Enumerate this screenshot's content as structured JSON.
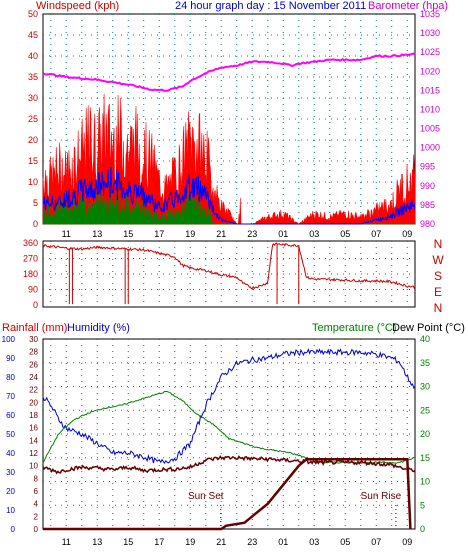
{
  "header": {
    "left_title": "Windspeed (kph)",
    "center_title": "24 hour graph day : 15 November 2011",
    "right_title": "Barometer (hpa)"
  },
  "lower_header": {
    "rain": "Rainfall (mm)",
    "humidity": "Humidity (%)",
    "temp": "Temperature (°C)",
    "dew": "Dew Point (°C)"
  },
  "x_ticks": [
    "11",
    "13",
    "15",
    "17",
    "19",
    "21",
    "23",
    "01",
    "03",
    "05",
    "07",
    "09"
  ],
  "colors": {
    "wind": "#ff0000",
    "gust_avg": "#0000ff",
    "green": "#008000",
    "baro": "#ff00ff",
    "dir": "#cc0000",
    "humidity": "#0000cc",
    "temperature": "#008000",
    "dewpoint": "#660000",
    "rain": "#660000",
    "grid": "#008080",
    "axis_blue": "#0000cc",
    "axis_red": "#cc0000",
    "axis_magenta": "#cc00cc",
    "axis_green": "#008000"
  },
  "chart_data": [
    {
      "type": "line",
      "panel": "wind-baro",
      "x_range_hours": [
        9.5,
        33.5
      ],
      "series_wind": {
        "ylim": [
          0,
          50
        ],
        "y_ticks": [
          "0",
          "5",
          "10",
          "15",
          "20",
          "25",
          "30",
          "35",
          "40",
          "45",
          "50"
        ],
        "gust_profile": [
          [
            9.5,
            14
          ],
          [
            10,
            13
          ],
          [
            10.5,
            16
          ],
          [
            11,
            15
          ],
          [
            11.5,
            18
          ],
          [
            12,
            20
          ],
          [
            12.5,
            24
          ],
          [
            13,
            22
          ],
          [
            13.5,
            26
          ],
          [
            14,
            24
          ],
          [
            14.5,
            25
          ],
          [
            15,
            22
          ],
          [
            15.5,
            23
          ],
          [
            16,
            20
          ],
          [
            16.5,
            18
          ],
          [
            17,
            12
          ],
          [
            17.5,
            10
          ],
          [
            18,
            14
          ],
          [
            18.5,
            18
          ],
          [
            19,
            24
          ],
          [
            19.5,
            22
          ],
          [
            20,
            20
          ],
          [
            20.5,
            10
          ],
          [
            21,
            5
          ],
          [
            21.5,
            3
          ],
          [
            22,
            0
          ],
          [
            23,
            0
          ],
          [
            24,
            2
          ],
          [
            25,
            3
          ],
          [
            26,
            0
          ],
          [
            27,
            3
          ],
          [
            28,
            2
          ],
          [
            29,
            3
          ],
          [
            30,
            2
          ],
          [
            31,
            4
          ],
          [
            32,
            6
          ],
          [
            32.5,
            10
          ],
          [
            33,
            12
          ],
          [
            33.5,
            14
          ]
        ],
        "avg_profile": [
          [
            9.5,
            5
          ],
          [
            10.5,
            5
          ],
          [
            11,
            6
          ],
          [
            12,
            8
          ],
          [
            13,
            9
          ],
          [
            14,
            10
          ],
          [
            15,
            8
          ],
          [
            16,
            7
          ],
          [
            17,
            4
          ],
          [
            18,
            6
          ],
          [
            19,
            9
          ],
          [
            20,
            8
          ],
          [
            20.5,
            3
          ],
          [
            21,
            1
          ],
          [
            22,
            0
          ],
          [
            30,
            0
          ],
          [
            31,
            1
          ],
          [
            32,
            2
          ],
          [
            33,
            4
          ],
          [
            33.5,
            5
          ]
        ],
        "green_profile": [
          [
            9.5,
            3
          ],
          [
            10,
            4
          ],
          [
            11,
            4
          ],
          [
            12,
            5
          ],
          [
            13,
            6
          ],
          [
            14,
            6
          ],
          [
            15,
            5
          ],
          [
            16,
            4
          ],
          [
            17,
            2
          ],
          [
            18,
            3
          ],
          [
            19,
            5
          ],
          [
            20,
            4
          ],
          [
            20.5,
            0
          ],
          [
            33.5,
            0
          ]
        ]
      },
      "series_barometer": {
        "ylim": [
          980,
          1035
        ],
        "y_ticks": [
          "980",
          "985",
          "990",
          "995",
          "1000",
          "1005",
          "1010",
          "1015",
          "1020",
          "1025",
          "1030",
          "1035"
        ],
        "profile": [
          [
            9.5,
            1019.5
          ],
          [
            11,
            1018.5
          ],
          [
            13,
            1017.8
          ],
          [
            15,
            1016.5
          ],
          [
            16.5,
            1015.2
          ],
          [
            17.5,
            1015
          ],
          [
            18.5,
            1016
          ],
          [
            19,
            1017.5
          ],
          [
            20,
            1019.5
          ],
          [
            21,
            1021
          ],
          [
            22,
            1021.5
          ],
          [
            23,
            1022.5
          ],
          [
            24,
            1022.5
          ],
          [
            25,
            1022
          ],
          [
            25.5,
            1021.5
          ],
          [
            26,
            1022
          ],
          [
            27,
            1022.5
          ],
          [
            28,
            1023
          ],
          [
            29,
            1023
          ],
          [
            30,
            1023
          ],
          [
            31,
            1024
          ],
          [
            32,
            1024
          ],
          [
            33,
            1024.3
          ],
          [
            33.5,
            1024.5
          ]
        ]
      }
    },
    {
      "type": "line",
      "panel": "wind-direction",
      "ylim": [
        0,
        360
      ],
      "y_ticks": [
        "0",
        "90",
        "180",
        "270",
        "360"
      ],
      "right_labels": [
        "N",
        "W",
        "S",
        "E",
        "N"
      ],
      "profile": [
        [
          9.5,
          345
        ],
        [
          10,
          340
        ],
        [
          11,
          330
        ],
        [
          12,
          325
        ],
        [
          13,
          335
        ],
        [
          14,
          330
        ],
        [
          15,
          325
        ],
        [
          16,
          320
        ],
        [
          17,
          300
        ],
        [
          18,
          280
        ],
        [
          18.5,
          230
        ],
        [
          19,
          215
        ],
        [
          20,
          200
        ],
        [
          21,
          175
        ],
        [
          22,
          160
        ],
        [
          22.5,
          120
        ],
        [
          23,
          100
        ],
        [
          23.5,
          110
        ],
        [
          24,
          130
        ],
        [
          24.3,
          350
        ],
        [
          24.5,
          355
        ],
        [
          25,
          350
        ],
        [
          26,
          345
        ],
        [
          26.5,
          160
        ],
        [
          27,
          150
        ],
        [
          28,
          148
        ],
        [
          29,
          145
        ],
        [
          30,
          140
        ],
        [
          31,
          140
        ],
        [
          32,
          135
        ],
        [
          33,
          110
        ],
        [
          33.5,
          105
        ]
      ]
    },
    {
      "type": "line",
      "panel": "temp-humidity-rain",
      "series_humidity": {
        "ylim": [
          0,
          100
        ],
        "y_ticks": [
          "0",
          "10",
          "20",
          "30",
          "40",
          "50",
          "60",
          "70",
          "80",
          "90",
          "100"
        ],
        "profile": [
          [
            9.5,
            70
          ],
          [
            10,
            65
          ],
          [
            10.5,
            58
          ],
          [
            11,
            53
          ],
          [
            12,
            50
          ],
          [
            13,
            45
          ],
          [
            14,
            40
          ],
          [
            15,
            40
          ],
          [
            16,
            38
          ],
          [
            17,
            35
          ],
          [
            18,
            37
          ],
          [
            19,
            45
          ],
          [
            20,
            65
          ],
          [
            21,
            80
          ],
          [
            22,
            87
          ],
          [
            23,
            89
          ],
          [
            24,
            90
          ],
          [
            25,
            92
          ],
          [
            26,
            93
          ],
          [
            27,
            93
          ],
          [
            28,
            93
          ],
          [
            29,
            93
          ],
          [
            30,
            93
          ],
          [
            31,
            92
          ],
          [
            32,
            90
          ],
          [
            32.5,
            88
          ],
          [
            33,
            80
          ],
          [
            33.5,
            74
          ]
        ]
      },
      "series_rain": {
        "ylim": [
          0,
          30
        ],
        "y_ticks": [
          "0",
          "2",
          "4",
          "6",
          "8",
          "10",
          "12",
          "14",
          "16",
          "18",
          "20",
          "22",
          "24",
          "26",
          "28",
          "30"
        ],
        "profile": [
          [
            9.5,
            0
          ],
          [
            21,
            0
          ],
          [
            21.3,
            0.5
          ],
          [
            22.5,
            1
          ],
          [
            23,
            2
          ],
          [
            24,
            4
          ],
          [
            25,
            7
          ],
          [
            26,
            10
          ],
          [
            26.5,
            11
          ],
          [
            33,
            11
          ],
          [
            33.2,
            0
          ]
        ]
      },
      "series_temperature": {
        "ylim": [
          0,
          40
        ],
        "y_ticks": [
          "0",
          "5",
          "10",
          "15",
          "20",
          "25",
          "30",
          "35",
          "40"
        ],
        "profile": [
          [
            9.5,
            14
          ],
          [
            10.5,
            20
          ],
          [
            11.5,
            23
          ],
          [
            12.5,
            24.5
          ],
          [
            13.5,
            25.5
          ],
          [
            14.5,
            26
          ],
          [
            15.5,
            27
          ],
          [
            16.5,
            28
          ],
          [
            17.5,
            29
          ],
          [
            18.5,
            27
          ],
          [
            19.5,
            24
          ],
          [
            20.5,
            22
          ],
          [
            21.5,
            19
          ],
          [
            22.5,
            18
          ],
          [
            23.5,
            17
          ],
          [
            24.5,
            16.5
          ],
          [
            25.5,
            16
          ],
          [
            26.5,
            15
          ],
          [
            27.5,
            14
          ],
          [
            28.5,
            14
          ],
          [
            29.5,
            14
          ],
          [
            30.5,
            14
          ],
          [
            31.5,
            14
          ],
          [
            32.5,
            14
          ],
          [
            33.5,
            15
          ]
        ]
      },
      "series_dewpoint": {
        "ylim": [
          0,
          40
        ],
        "profile": [
          [
            9.5,
            13
          ],
          [
            10.5,
            12
          ],
          [
            11,
            12.5
          ],
          [
            12,
            13
          ],
          [
            13,
            12.8
          ],
          [
            14,
            12.5
          ],
          [
            15,
            13
          ],
          [
            16,
            12.3
          ],
          [
            17,
            12.5
          ],
          [
            18,
            12.6
          ],
          [
            19,
            13
          ],
          [
            20,
            14.5
          ],
          [
            21,
            15
          ],
          [
            22,
            15
          ],
          [
            23,
            14.8
          ],
          [
            24,
            14.7
          ],
          [
            25,
            14.5
          ],
          [
            26,
            14.3
          ],
          [
            27,
            14
          ],
          [
            28,
            14
          ],
          [
            29,
            14
          ],
          [
            30,
            14
          ],
          [
            31,
            13.8
          ],
          [
            32,
            13.5
          ],
          [
            32.5,
            13
          ],
          [
            33,
            12.5
          ],
          [
            33.5,
            12.4
          ]
        ]
      },
      "annotations": [
        {
          "text": "Sun Set",
          "hour": 20.0
        },
        {
          "text": "Sun Rise",
          "hour": 31.3
        }
      ]
    }
  ]
}
